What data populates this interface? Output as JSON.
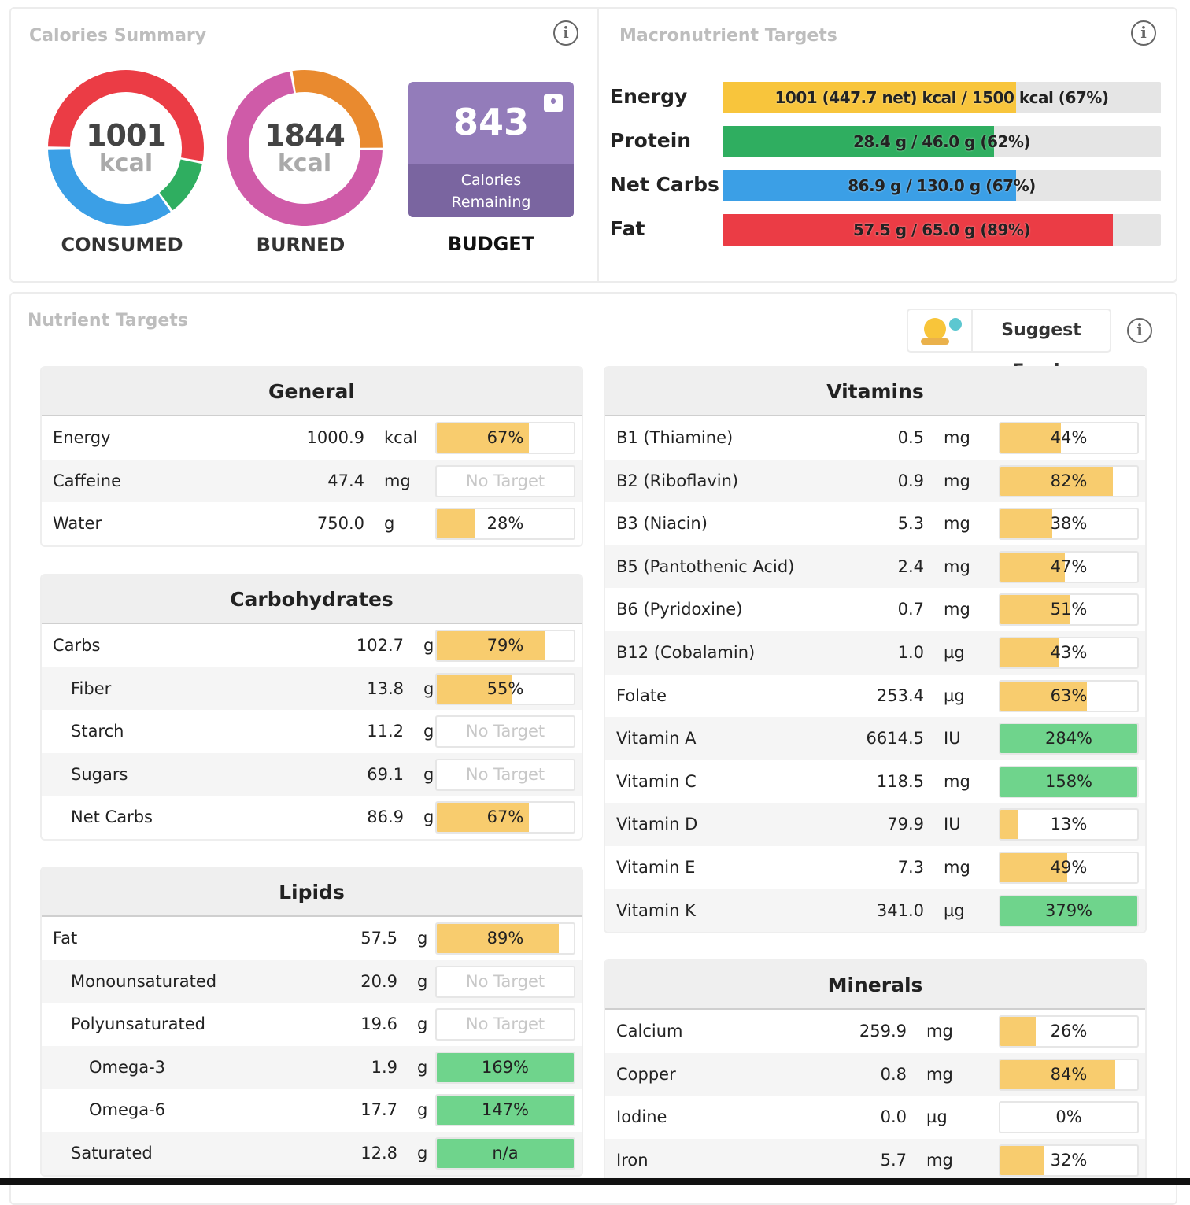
{
  "colors": {
    "fat": "#eb3c45",
    "protein": "#2fae60",
    "carbs": "#3b9fe6",
    "burn_a": "#e98a2f",
    "burn_b": "#cf5ba8",
    "energy": "#f8c53c",
    "bar_yellow": "#f8cc6e",
    "bar_green": "#6fd48c",
    "budget": "#937cba"
  },
  "calories_summary": {
    "title": "Calories Summary",
    "consumed": {
      "value": "1001",
      "unit": "kcal",
      "label": "CONSUMED",
      "segments": [
        {
          "name": "fat",
          "pct": 53
        },
        {
          "name": "protein",
          "pct": 12
        },
        {
          "name": "carbs",
          "pct": 35
        }
      ]
    },
    "burned": {
      "value": "1844",
      "unit": "kcal",
      "label": "BURNED",
      "segments": [
        {
          "name": "burn_a",
          "pct": 28
        },
        {
          "name": "burn_b",
          "pct": 72
        }
      ]
    },
    "budget": {
      "value": "843",
      "caption1": "Calories",
      "caption2": "Remaining",
      "label": "BUDGET"
    }
  },
  "macro_targets": {
    "title": "Macronutrient Targets",
    "items": [
      {
        "label": "Energy",
        "text": "1001 (447.7 net) kcal / 1500 kcal (67%)",
        "pct": 67,
        "color": "energy"
      },
      {
        "label": "Protein",
        "text": "28.4 g / 46.0 g (62%)",
        "pct": 62,
        "color": "protein"
      },
      {
        "label": "Net Carbs",
        "text": "86.9 g / 130.0 g (67%)",
        "pct": 67,
        "color": "carbs"
      },
      {
        "label": "Fat",
        "text": "57.5 g / 65.0 g (89%)",
        "pct": 89,
        "color": "fat"
      }
    ]
  },
  "nutrient_targets": {
    "title": "Nutrient Targets",
    "suggest_label": "Suggest Foods",
    "panels": [
      {
        "title": "General",
        "rows": [
          {
            "name": "Energy",
            "value": "1000.9",
            "unit": "kcal",
            "pct": 67,
            "text": "67%",
            "level": 0
          },
          {
            "name": "Caffeine",
            "value": "47.4",
            "unit": "mg",
            "pct": null,
            "text": "No Target",
            "level": 0
          },
          {
            "name": "Water",
            "value": "750.0",
            "unit": "g",
            "pct": 28,
            "text": "28%",
            "level": 0
          }
        ]
      },
      {
        "title": "Carbohydrates",
        "rows": [
          {
            "name": "Carbs",
            "value": "102.7",
            "unit": "g",
            "pct": 79,
            "text": "79%",
            "level": 0
          },
          {
            "name": "Fiber",
            "value": "13.8",
            "unit": "g",
            "pct": 55,
            "text": "55%",
            "level": 1
          },
          {
            "name": "Starch",
            "value": "11.2",
            "unit": "g",
            "pct": null,
            "text": "No Target",
            "level": 1
          },
          {
            "name": "Sugars",
            "value": "69.1",
            "unit": "g",
            "pct": null,
            "text": "No Target",
            "level": 1
          },
          {
            "name": "Net Carbs",
            "value": "86.9",
            "unit": "g",
            "pct": 67,
            "text": "67%",
            "level": 1
          }
        ]
      },
      {
        "title": "Lipids",
        "rows": [
          {
            "name": "Fat",
            "value": "57.5",
            "unit": "g",
            "pct": 89,
            "text": "89%",
            "level": 0
          },
          {
            "name": "Monounsaturated",
            "value": "20.9",
            "unit": "g",
            "pct": null,
            "text": "No Target",
            "level": 1
          },
          {
            "name": "Polyunsaturated",
            "value": "19.6",
            "unit": "g",
            "pct": null,
            "text": "No Target",
            "level": 1
          },
          {
            "name": "Omega-3",
            "value": "1.9",
            "unit": "g",
            "pct": 169,
            "text": "169%",
            "level": 2
          },
          {
            "name": "Omega-6",
            "value": "17.7",
            "unit": "g",
            "pct": 147,
            "text": "147%",
            "level": 2
          },
          {
            "name": "Saturated",
            "value": "12.8",
            "unit": "g",
            "pct": 100,
            "text": "n/a",
            "level": 1,
            "green": true
          }
        ]
      },
      {
        "title": "Vitamins",
        "rows": [
          {
            "name": "B1 (Thiamine)",
            "value": "0.5",
            "unit": "mg",
            "pct": 44,
            "text": "44%",
            "level": 0
          },
          {
            "name": "B2 (Riboflavin)",
            "value": "0.9",
            "unit": "mg",
            "pct": 82,
            "text": "82%",
            "level": 0
          },
          {
            "name": "B3 (Niacin)",
            "value": "5.3",
            "unit": "mg",
            "pct": 38,
            "text": "38%",
            "level": 0
          },
          {
            "name": "B5 (Pantothenic Acid)",
            "value": "2.4",
            "unit": "mg",
            "pct": 47,
            "text": "47%",
            "level": 0
          },
          {
            "name": "B6 (Pyridoxine)",
            "value": "0.7",
            "unit": "mg",
            "pct": 51,
            "text": "51%",
            "level": 0
          },
          {
            "name": "B12 (Cobalamin)",
            "value": "1.0",
            "unit": "µg",
            "pct": 43,
            "text": "43%",
            "level": 0
          },
          {
            "name": "Folate",
            "value": "253.4",
            "unit": "µg",
            "pct": 63,
            "text": "63%",
            "level": 0
          },
          {
            "name": "Vitamin A",
            "value": "6614.5",
            "unit": "IU",
            "pct": 284,
            "text": "284%",
            "level": 0
          },
          {
            "name": "Vitamin C",
            "value": "118.5",
            "unit": "mg",
            "pct": 158,
            "text": "158%",
            "level": 0
          },
          {
            "name": "Vitamin D",
            "value": "79.9",
            "unit": "IU",
            "pct": 13,
            "text": "13%",
            "level": 0
          },
          {
            "name": "Vitamin E",
            "value": "7.3",
            "unit": "mg",
            "pct": 49,
            "text": "49%",
            "level": 0
          },
          {
            "name": "Vitamin K",
            "value": "341.0",
            "unit": "µg",
            "pct": 379,
            "text": "379%",
            "level": 0
          }
        ]
      },
      {
        "title": "Minerals",
        "rows": [
          {
            "name": "Calcium",
            "value": "259.9",
            "unit": "mg",
            "pct": 26,
            "text": "26%",
            "level": 0
          },
          {
            "name": "Copper",
            "value": "0.8",
            "unit": "mg",
            "pct": 84,
            "text": "84%",
            "level": 0
          },
          {
            "name": "Iodine",
            "value": "0.0",
            "unit": "µg",
            "pct": 0,
            "text": "0%",
            "level": 0
          },
          {
            "name": "Iron",
            "value": "5.7",
            "unit": "mg",
            "pct": 32,
            "text": "32%",
            "level": 0
          }
        ]
      }
    ]
  }
}
